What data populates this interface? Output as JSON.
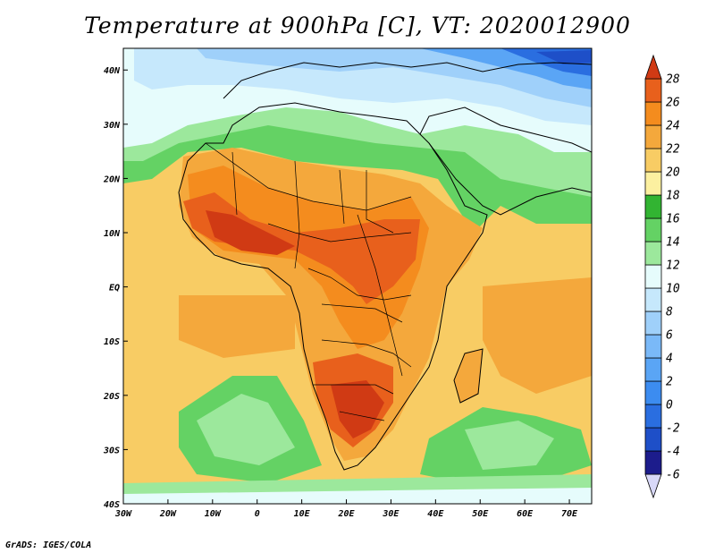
{
  "title": "Temperature at 900hPa [C], VT: 2020012900",
  "credit": "GrADS: IGES/COLA",
  "map": {
    "lon_range": [
      -30,
      75
    ],
    "lat_range": [
      -40,
      44
    ],
    "lon_ticks": [
      {
        "value": -30,
        "label": "30W"
      },
      {
        "value": -20,
        "label": "20W"
      },
      {
        "value": -10,
        "label": "10W"
      },
      {
        "value": 0,
        "label": "0"
      },
      {
        "value": 10,
        "label": "10E"
      },
      {
        "value": 20,
        "label": "20E"
      },
      {
        "value": 30,
        "label": "30E"
      },
      {
        "value": 40,
        "label": "40E"
      },
      {
        "value": 50,
        "label": "50E"
      },
      {
        "value": 60,
        "label": "60E"
      },
      {
        "value": 70,
        "label": "70E"
      }
    ],
    "lat_ticks": [
      {
        "value": 40,
        "label": "40N"
      },
      {
        "value": 30,
        "label": "30N"
      },
      {
        "value": 20,
        "label": "20N"
      },
      {
        "value": 10,
        "label": "10N"
      },
      {
        "value": 0,
        "label": "EQ"
      },
      {
        "value": -10,
        "label": "10S"
      },
      {
        "value": -20,
        "label": "20S"
      },
      {
        "value": -30,
        "label": "30S"
      },
      {
        "value": -40,
        "label": "40S"
      }
    ]
  },
  "colorbar": {
    "levels": [
      -6,
      -4,
      -2,
      0,
      2,
      4,
      6,
      8,
      10,
      12,
      14,
      16,
      18,
      20,
      22,
      24,
      26,
      28
    ],
    "labels": [
      "-6",
      "-4",
      "-2",
      "0",
      "2",
      "4",
      "6",
      "8",
      "10",
      "12",
      "14",
      "16",
      "18",
      "20",
      "22",
      "24",
      "26",
      "28"
    ],
    "colors": [
      "#d8d8f8",
      "#1c1c8c",
      "#1e4fc8",
      "#2a6ee0",
      "#3c8cf0",
      "#5aa5f5",
      "#7ab9f8",
      "#9fd0fa",
      "#c6e8fc",
      "#e6fcfc",
      "#9ce89c",
      "#64d264",
      "#32b432",
      "#fcf0a0",
      "#f8cc64",
      "#f4a83c",
      "#f48c1e",
      "#e8601c",
      "#d03a14"
    ]
  }
}
